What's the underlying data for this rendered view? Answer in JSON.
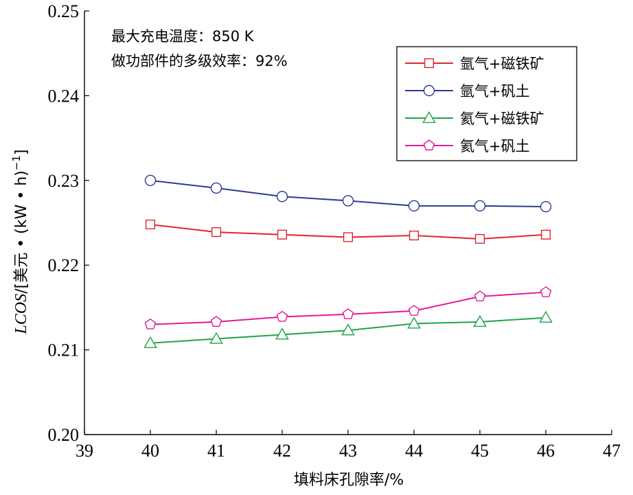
{
  "chart_data": {
    "type": "line",
    "title": "",
    "xlabel": "填料床孔隙率/%",
    "ylabel": "LCOS/[美元 • (kW • h)⁻¹]",
    "ylabel_parts": {
      "italic": "LCOS",
      "rest": "/[美元 • (kW • h)",
      "superscript": "−1",
      "close": "]"
    },
    "xlim": [
      39,
      47
    ],
    "ylim": [
      0.2,
      0.25
    ],
    "x_ticks": [
      39,
      40,
      41,
      42,
      43,
      44,
      45,
      46,
      47
    ],
    "y_ticks": [
      0.2,
      0.21,
      0.22,
      0.23,
      0.24,
      0.25
    ],
    "x_tick_labels": [
      "39",
      "40",
      "41",
      "42",
      "43",
      "44",
      "45",
      "46",
      "47"
    ],
    "y_tick_labels": [
      "0.20",
      "0.21",
      "0.22",
      "0.23",
      "0.24",
      "0.25"
    ],
    "grid": false,
    "legend_position": "top-right",
    "annotations": [
      "最大充电温度：850 K",
      "做功部件的多级效率：92%"
    ],
    "x": [
      40,
      41,
      42,
      43,
      44,
      45,
      46
    ],
    "series": [
      {
        "name": "氩气+磁铁矿",
        "color": "#e3242b",
        "marker": "square",
        "values": [
          0.2248,
          0.2239,
          0.2236,
          0.2233,
          0.2235,
          0.2231,
          0.2236
        ]
      },
      {
        "name": "氩气+矾土",
        "color": "#2b3990",
        "marker": "circle",
        "values": [
          0.23,
          0.2291,
          0.2281,
          0.2276,
          0.227,
          0.227,
          0.2269
        ]
      },
      {
        "name": "氦气+磁铁矿",
        "color": "#1fa34a",
        "marker": "triangle",
        "values": [
          0.2108,
          0.2113,
          0.2118,
          0.2123,
          0.2131,
          0.2133,
          0.2138
        ]
      },
      {
        "name": "氦气+矾土",
        "color": "#e0199c",
        "marker": "pentagon",
        "values": [
          0.213,
          0.2133,
          0.2139,
          0.2142,
          0.2146,
          0.2163,
          0.2168
        ]
      }
    ]
  }
}
